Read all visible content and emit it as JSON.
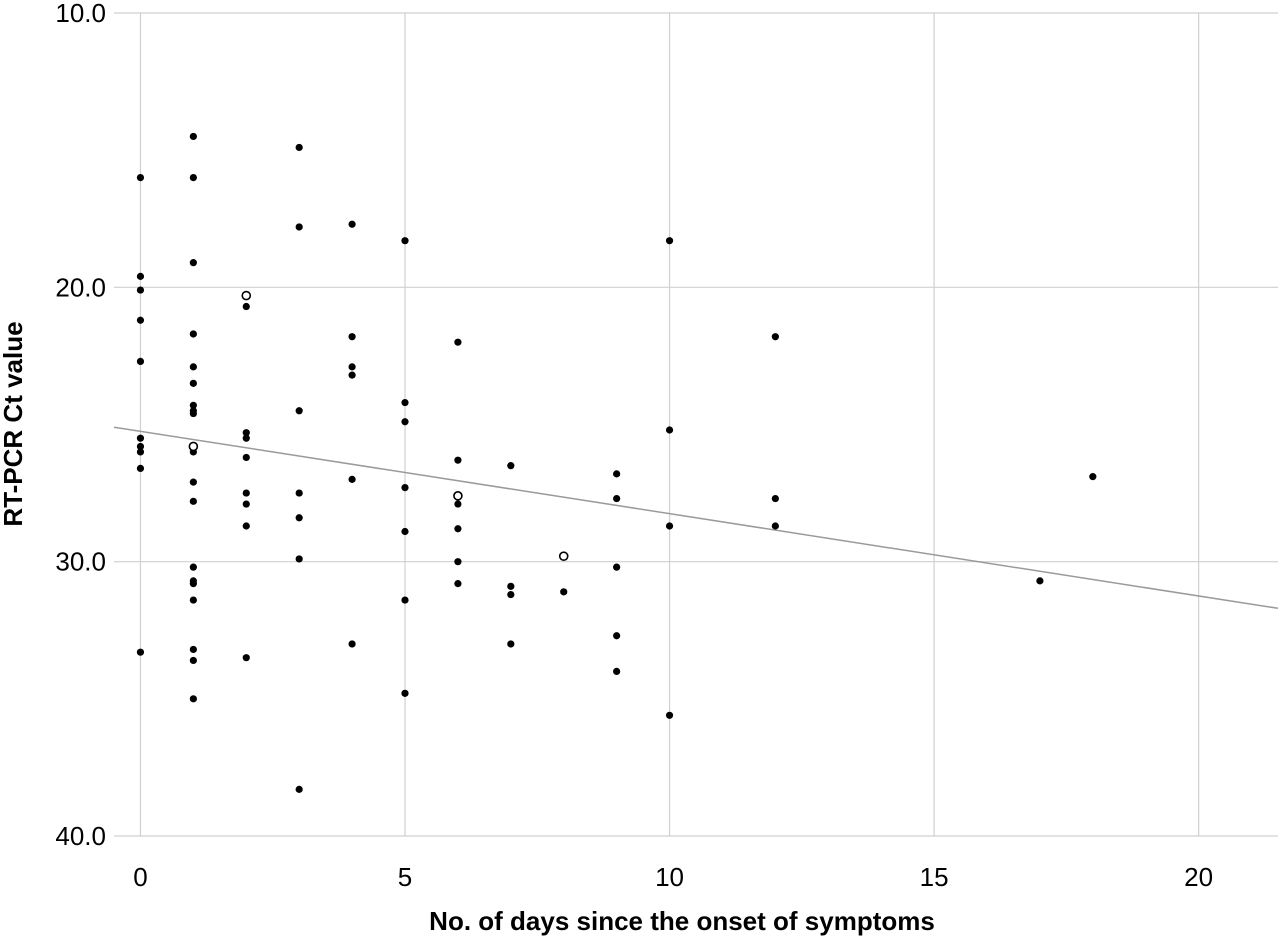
{
  "chart_data": {
    "type": "scatter",
    "xlabel": "No. of days since the onset of symptoms",
    "ylabel": "RT-PCR Ct value",
    "xlim": [
      -0.5,
      21.5
    ],
    "ylim": [
      10.0,
      40.0
    ],
    "y_inverted": true,
    "x_ticks": [
      0,
      5,
      10,
      15,
      20
    ],
    "x_tick_labels": [
      "0",
      "5",
      "10",
      "15",
      "20"
    ],
    "y_ticks": [
      10,
      20,
      30,
      40
    ],
    "y_tick_labels": [
      "10.0",
      "20.0",
      "30.0",
      "40.0"
    ],
    "grid": true,
    "series": [
      {
        "marker": "filled-circle",
        "color": "#000000",
        "points": [
          [
            0,
            16.0
          ],
          [
            0,
            19.6
          ],
          [
            0,
            20.1
          ],
          [
            0,
            21.2
          ],
          [
            0,
            22.7
          ],
          [
            0,
            25.5
          ],
          [
            0,
            25.8
          ],
          [
            0,
            26.0
          ],
          [
            0,
            26.6
          ],
          [
            0,
            33.3
          ],
          [
            1,
            14.5
          ],
          [
            1,
            16.0
          ],
          [
            1,
            19.1
          ],
          [
            1,
            21.7
          ],
          [
            1,
            22.9
          ],
          [
            1,
            23.5
          ],
          [
            1,
            24.3
          ],
          [
            1,
            24.5
          ],
          [
            1,
            24.6
          ],
          [
            1,
            26.0
          ],
          [
            1,
            27.1
          ],
          [
            1,
            27.8
          ],
          [
            1,
            30.2
          ],
          [
            1,
            30.7
          ],
          [
            1,
            30.8
          ],
          [
            1,
            31.4
          ],
          [
            1,
            33.2
          ],
          [
            1,
            33.6
          ],
          [
            1,
            35.0
          ],
          [
            2,
            20.7
          ],
          [
            2,
            25.3
          ],
          [
            2,
            25.5
          ],
          [
            2,
            26.2
          ],
          [
            2,
            27.5
          ],
          [
            2,
            27.9
          ],
          [
            2,
            28.7
          ],
          [
            2,
            33.5
          ],
          [
            3,
            14.9
          ],
          [
            3,
            17.8
          ],
          [
            3,
            24.5
          ],
          [
            3,
            27.5
          ],
          [
            3,
            28.4
          ],
          [
            3,
            29.9
          ],
          [
            3,
            38.3
          ],
          [
            4,
            17.7
          ],
          [
            4,
            21.8
          ],
          [
            4,
            22.9
          ],
          [
            4,
            23.2
          ],
          [
            4,
            27.0
          ],
          [
            4,
            33.0
          ],
          [
            5,
            18.3
          ],
          [
            5,
            24.2
          ],
          [
            5,
            24.9
          ],
          [
            5,
            27.3
          ],
          [
            5,
            28.9
          ],
          [
            5,
            31.4
          ],
          [
            5,
            34.8
          ],
          [
            6,
            22.0
          ],
          [
            6,
            26.3
          ],
          [
            6,
            27.9
          ],
          [
            6,
            28.8
          ],
          [
            6,
            30.0
          ],
          [
            6,
            30.8
          ],
          [
            7,
            26.5
          ],
          [
            7,
            30.9
          ],
          [
            7,
            31.2
          ],
          [
            7,
            33.0
          ],
          [
            8,
            31.1
          ],
          [
            9,
            26.8
          ],
          [
            9,
            27.7
          ],
          [
            9,
            30.2
          ],
          [
            9,
            32.7
          ],
          [
            9,
            34.0
          ],
          [
            10,
            18.3
          ],
          [
            10,
            25.2
          ],
          [
            10,
            28.7
          ],
          [
            10,
            35.6
          ],
          [
            12,
            21.8
          ],
          [
            12,
            27.7
          ],
          [
            12,
            28.7
          ],
          [
            17,
            30.7
          ],
          [
            18,
            26.9
          ]
        ]
      },
      {
        "marker": "open-circle",
        "color": "#000000",
        "points": [
          [
            2,
            20.3
          ],
          [
            1,
            25.8
          ],
          [
            6,
            27.6
          ],
          [
            8,
            29.8
          ]
        ]
      }
    ],
    "fit_line": {
      "color": "#9a9a9a",
      "from": [
        -0.5,
        25.1
      ],
      "to": [
        21.5,
        31.7
      ]
    }
  }
}
